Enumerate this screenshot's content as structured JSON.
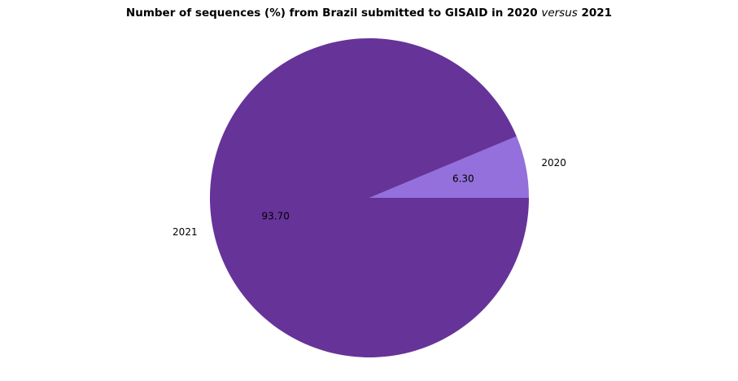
{
  "chart_data": {
    "type": "pie",
    "title": {
      "part1": "Number of sequences (%) from Brazil submitted to GISAID in 2020 ",
      "italic": "versus",
      "part2": " 2021"
    },
    "slices": [
      {
        "label": "2020",
        "value": 6.3,
        "value_label": "6.30",
        "color": "#9370DB"
      },
      {
        "label": "2021",
        "value": 93.7,
        "value_label": "93.70",
        "color": "#663399"
      }
    ],
    "start_angle_deg": 0,
    "direction": "counterclockwise",
    "legend": "none"
  }
}
